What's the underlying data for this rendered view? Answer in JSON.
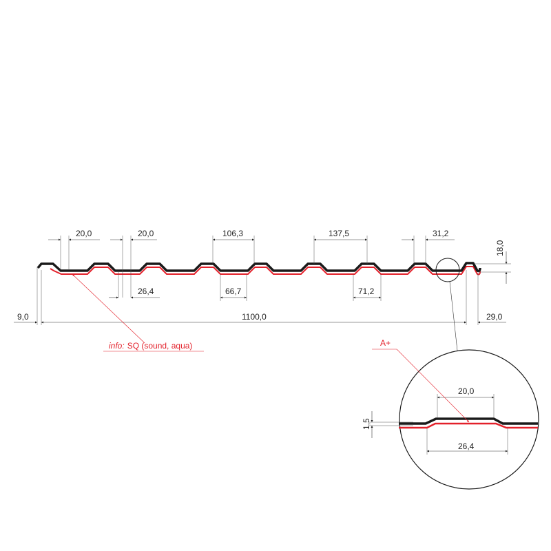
{
  "colors": {
    "profile": "#1a1a1a",
    "coating": "#e3202a",
    "dimension": "#333333"
  },
  "dimensions": {
    "rib_top_left": "20,0",
    "rib_top_second": "20,0",
    "pitch_a": "106,3",
    "pitch_b": "137,5",
    "rib_top_right": "31,2",
    "height": "18,0",
    "rib_bottom": "26,4",
    "valley_a": "66,7",
    "valley_b": "71,2",
    "left_offset": "9,0",
    "cover_width": "1100,0",
    "right_offset": "29,0"
  },
  "info_label": {
    "prefix": "info:",
    "text": "SQ (sound, aqua)"
  },
  "detail": {
    "label": "A+",
    "top_width": "20,0",
    "bottom_width": "26,4",
    "thickness": "1,5"
  }
}
